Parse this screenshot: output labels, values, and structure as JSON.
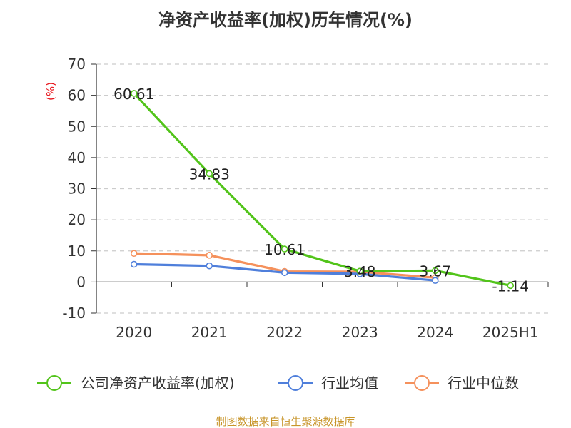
{
  "chart_data": {
    "type": "line",
    "title": "净资产收益率(加权)历年情况(%)",
    "unit_label": "(%)",
    "categories": [
      "2020",
      "2021",
      "2022",
      "2023",
      "2024",
      "2025H1"
    ],
    "ylim": [
      -10,
      70
    ],
    "yticks": [
      "70",
      "60",
      "50",
      "40",
      "30",
      "20",
      "10",
      "0",
      "-10"
    ],
    "ytick_values": [
      70,
      60,
      50,
      40,
      30,
      20,
      10,
      0,
      -10
    ],
    "grid": true,
    "legend_position": "bottom",
    "series": [
      {
        "name": "公司净资产收益率(加权)",
        "color": "#52c41a",
        "values": [
          60.61,
          34.83,
          10.61,
          3.48,
          3.67,
          -1.14
        ],
        "labels": [
          "60.61",
          "34.83",
          "10.61",
          "3.48",
          "3.67",
          "-1.14"
        ]
      },
      {
        "name": "行业均值",
        "color": "#4f7fdb",
        "values": [
          5.7,
          5.2,
          3.0,
          2.6,
          0.5,
          null
        ]
      },
      {
        "name": "行业中位数",
        "color": "#f5915c",
        "values": [
          9.2,
          8.6,
          3.4,
          3.3,
          1.4,
          null
        ]
      }
    ],
    "source": "制图数据来自恒生聚源数据库"
  }
}
